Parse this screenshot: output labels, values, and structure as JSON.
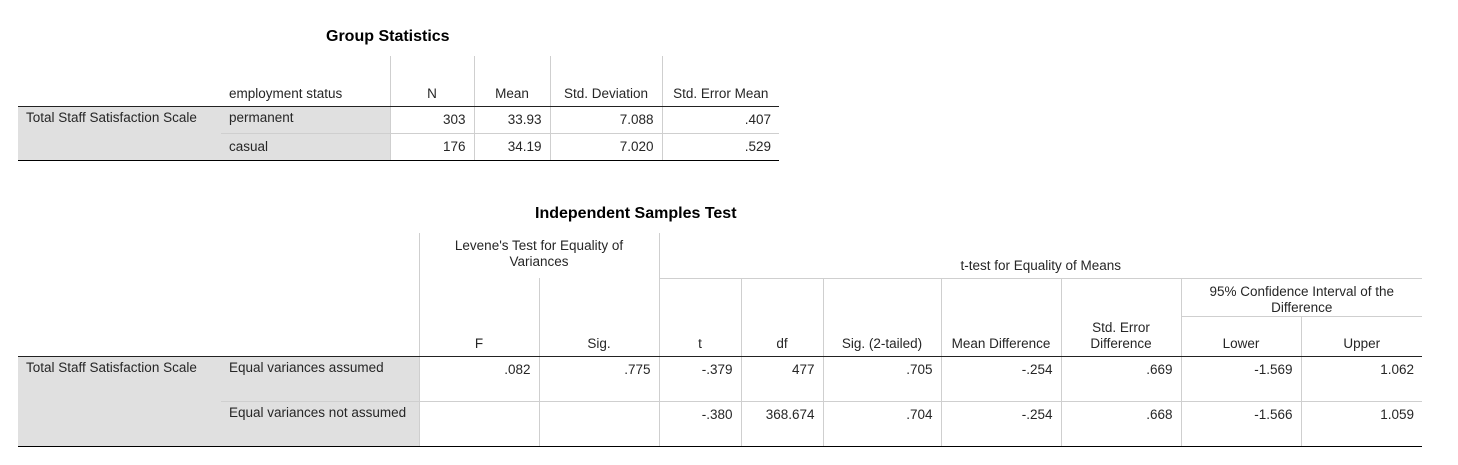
{
  "group_statistics": {
    "title": "Group Statistics",
    "headers": {
      "group_col": "employment status",
      "n": "N",
      "mean": "Mean",
      "std_dev": "Std. Deviation",
      "std_err": "Std. Error Mean"
    },
    "variable": "Total Staff Satisfaction Scale",
    "rows": [
      {
        "group": "permanent",
        "n": "303",
        "mean": "33.93",
        "std_dev": "7.088",
        "std_err": ".407"
      },
      {
        "group": "casual",
        "n": "176",
        "mean": "34.19",
        "std_dev": "7.020",
        "std_err": ".529"
      }
    ]
  },
  "independent_samples_test": {
    "title": "Independent Samples Test",
    "headers": {
      "levene": "Levene's Test for Equality of Variances",
      "ttest": "t-test for Equality of Means",
      "ci": "95% Confidence Interval of the Difference",
      "f": "F",
      "sig": "Sig.",
      "t": "t",
      "df": "df",
      "sig2": "Sig. (2-tailed)",
      "mean_diff": "Mean Difference",
      "se_diff": "Std. Error Difference",
      "lower": "Lower",
      "upper": "Upper"
    },
    "variable": "Total Staff Satisfaction Scale",
    "rows": [
      {
        "label": "Equal variances assumed",
        "f": ".082",
        "sig": ".775",
        "t": "-.379",
        "df": "477",
        "sig2": ".705",
        "mean_diff": "-.254",
        "se_diff": ".669",
        "lower": "-1.569",
        "upper": "1.062"
      },
      {
        "label": "Equal variances not assumed",
        "f": "",
        "sig": "",
        "t": "-.380",
        "df": "368.674",
        "sig2": ".704",
        "mean_diff": "-.254",
        "se_diff": ".668",
        "lower": "-1.566",
        "upper": "1.059"
      }
    ]
  }
}
